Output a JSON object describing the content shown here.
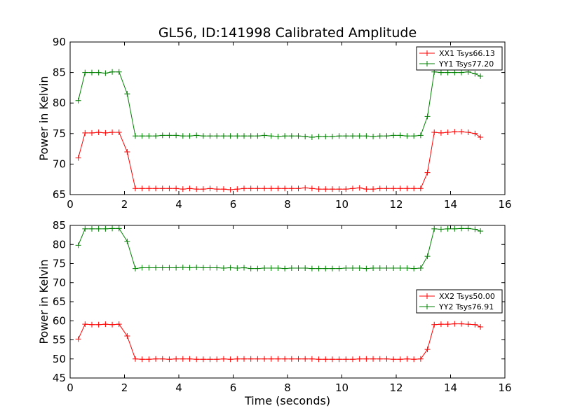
{
  "figure": {
    "title": "GL56, ID:141998 Calibrated Amplitude",
    "xlabel": "Time (seconds)"
  },
  "chart_data": [
    {
      "type": "line",
      "title": "GL56, ID:141998 Calibrated Amplitude",
      "xlabel": "",
      "ylabel": "Power in Kelvin",
      "xlim": [
        0,
        16
      ],
      "ylim": [
        65,
        90
      ],
      "xticks": [
        0,
        2,
        4,
        6,
        8,
        10,
        12,
        14,
        16
      ],
      "yticks": [
        65,
        70,
        75,
        80,
        85,
        90
      ],
      "grid": false,
      "legend": "top-right",
      "x": [
        0.3,
        0.55,
        0.8,
        1.05,
        1.3,
        1.55,
        1.8,
        2.1,
        2.4,
        2.65,
        2.9,
        3.15,
        3.4,
        3.65,
        3.9,
        4.15,
        4.4,
        4.65,
        4.9,
        5.15,
        5.4,
        5.65,
        5.9,
        6.15,
        6.4,
        6.65,
        6.9,
        7.15,
        7.4,
        7.65,
        7.9,
        8.15,
        8.4,
        8.65,
        8.9,
        9.15,
        9.4,
        9.65,
        9.9,
        10.15,
        10.4,
        10.65,
        10.9,
        11.15,
        11.4,
        11.65,
        11.9,
        12.15,
        12.4,
        12.65,
        12.9,
        13.15,
        13.4,
        13.65,
        13.9,
        14.15,
        14.4,
        14.65,
        14.9,
        15.1
      ],
      "series": [
        {
          "name": "XX1 Tsys66.13",
          "color": "#ff0000",
          "values": [
            71.0,
            75.1,
            75.1,
            75.2,
            75.1,
            75.2,
            75.2,
            72.0,
            66.0,
            66.0,
            66.0,
            66.0,
            66.0,
            66.0,
            66.0,
            65.9,
            66.0,
            65.9,
            65.9,
            66.0,
            65.9,
            65.9,
            65.8,
            65.9,
            66.0,
            66.0,
            66.0,
            66.0,
            66.0,
            66.0,
            66.0,
            66.0,
            66.0,
            66.1,
            66.0,
            65.9,
            65.9,
            65.9,
            65.9,
            65.9,
            66.0,
            66.1,
            65.9,
            65.9,
            66.0,
            66.0,
            66.0,
            66.0,
            66.0,
            66.0,
            66.0,
            68.6,
            75.2,
            75.1,
            75.2,
            75.3,
            75.3,
            75.2,
            75.0,
            74.4
          ]
        },
        {
          "name": "YY1 Tsys77.20",
          "color": "#008000",
          "values": [
            80.4,
            85.0,
            85.0,
            85.0,
            84.9,
            85.1,
            85.1,
            81.5,
            74.6,
            74.6,
            74.6,
            74.6,
            74.7,
            74.7,
            74.7,
            74.6,
            74.6,
            74.7,
            74.6,
            74.6,
            74.6,
            74.6,
            74.6,
            74.6,
            74.6,
            74.6,
            74.6,
            74.7,
            74.6,
            74.5,
            74.6,
            74.6,
            74.6,
            74.5,
            74.4,
            74.5,
            74.5,
            74.5,
            74.6,
            74.6,
            74.6,
            74.6,
            74.6,
            74.5,
            74.6,
            74.6,
            74.7,
            74.7,
            74.6,
            74.6,
            74.7,
            77.8,
            85.1,
            85.0,
            85.0,
            85.0,
            85.0,
            85.1,
            84.8,
            84.4
          ]
        }
      ]
    },
    {
      "type": "line",
      "title": "",
      "xlabel": "Time (seconds)",
      "ylabel": "Power in Kelvin",
      "xlim": [
        0,
        16
      ],
      "ylim": [
        45,
        85
      ],
      "xticks": [
        0,
        2,
        4,
        6,
        8,
        10,
        12,
        14,
        16
      ],
      "yticks": [
        45,
        50,
        55,
        60,
        65,
        70,
        75,
        80,
        85
      ],
      "grid": false,
      "legend": "center-right",
      "x": [
        0.3,
        0.55,
        0.8,
        1.05,
        1.3,
        1.55,
        1.8,
        2.1,
        2.4,
        2.65,
        2.9,
        3.15,
        3.4,
        3.65,
        3.9,
        4.15,
        4.4,
        4.65,
        4.9,
        5.15,
        5.4,
        5.65,
        5.9,
        6.15,
        6.4,
        6.65,
        6.9,
        7.15,
        7.4,
        7.65,
        7.9,
        8.15,
        8.4,
        8.65,
        8.9,
        9.15,
        9.4,
        9.65,
        9.9,
        10.15,
        10.4,
        10.65,
        10.9,
        11.15,
        11.4,
        11.65,
        11.9,
        12.15,
        12.4,
        12.65,
        12.9,
        13.15,
        13.4,
        13.65,
        13.9,
        14.15,
        14.4,
        14.65,
        14.9,
        15.1
      ],
      "series": [
        {
          "name": "XX2 Tsys50.00",
          "color": "#ff0000",
          "values": [
            55.2,
            59.1,
            59.0,
            59.0,
            59.1,
            59.0,
            59.1,
            56.0,
            50.0,
            49.9,
            49.9,
            50.0,
            50.0,
            49.9,
            50.0,
            50.0,
            50.0,
            49.9,
            49.9,
            49.9,
            49.9,
            50.0,
            49.9,
            50.0,
            50.0,
            50.0,
            50.0,
            50.0,
            50.0,
            50.0,
            50.0,
            50.0,
            50.0,
            50.0,
            50.0,
            49.9,
            49.9,
            49.9,
            49.9,
            49.9,
            49.9,
            50.0,
            50.0,
            50.0,
            50.0,
            50.0,
            49.9,
            49.9,
            50.0,
            49.9,
            50.0,
            52.5,
            59.0,
            59.1,
            59.1,
            59.2,
            59.2,
            59.1,
            59.0,
            58.4
          ]
        },
        {
          "name": "YY2 Tsys76.91",
          "color": "#008000",
          "values": [
            79.8,
            84.1,
            84.1,
            84.1,
            84.1,
            84.2,
            84.2,
            80.8,
            73.7,
            73.9,
            73.9,
            73.9,
            73.9,
            73.9,
            73.9,
            74.0,
            73.9,
            74.0,
            73.9,
            73.9,
            73.9,
            73.8,
            73.9,
            73.8,
            73.9,
            73.7,
            73.7,
            73.8,
            73.8,
            73.8,
            73.7,
            73.8,
            73.8,
            73.8,
            73.7,
            73.7,
            73.7,
            73.7,
            73.7,
            73.8,
            73.8,
            73.8,
            73.7,
            73.8,
            73.8,
            73.8,
            73.8,
            73.8,
            73.8,
            73.7,
            73.8,
            76.9,
            84.1,
            84.0,
            84.1,
            84.1,
            84.2,
            84.2,
            84.0,
            83.5
          ]
        }
      ]
    }
  ]
}
